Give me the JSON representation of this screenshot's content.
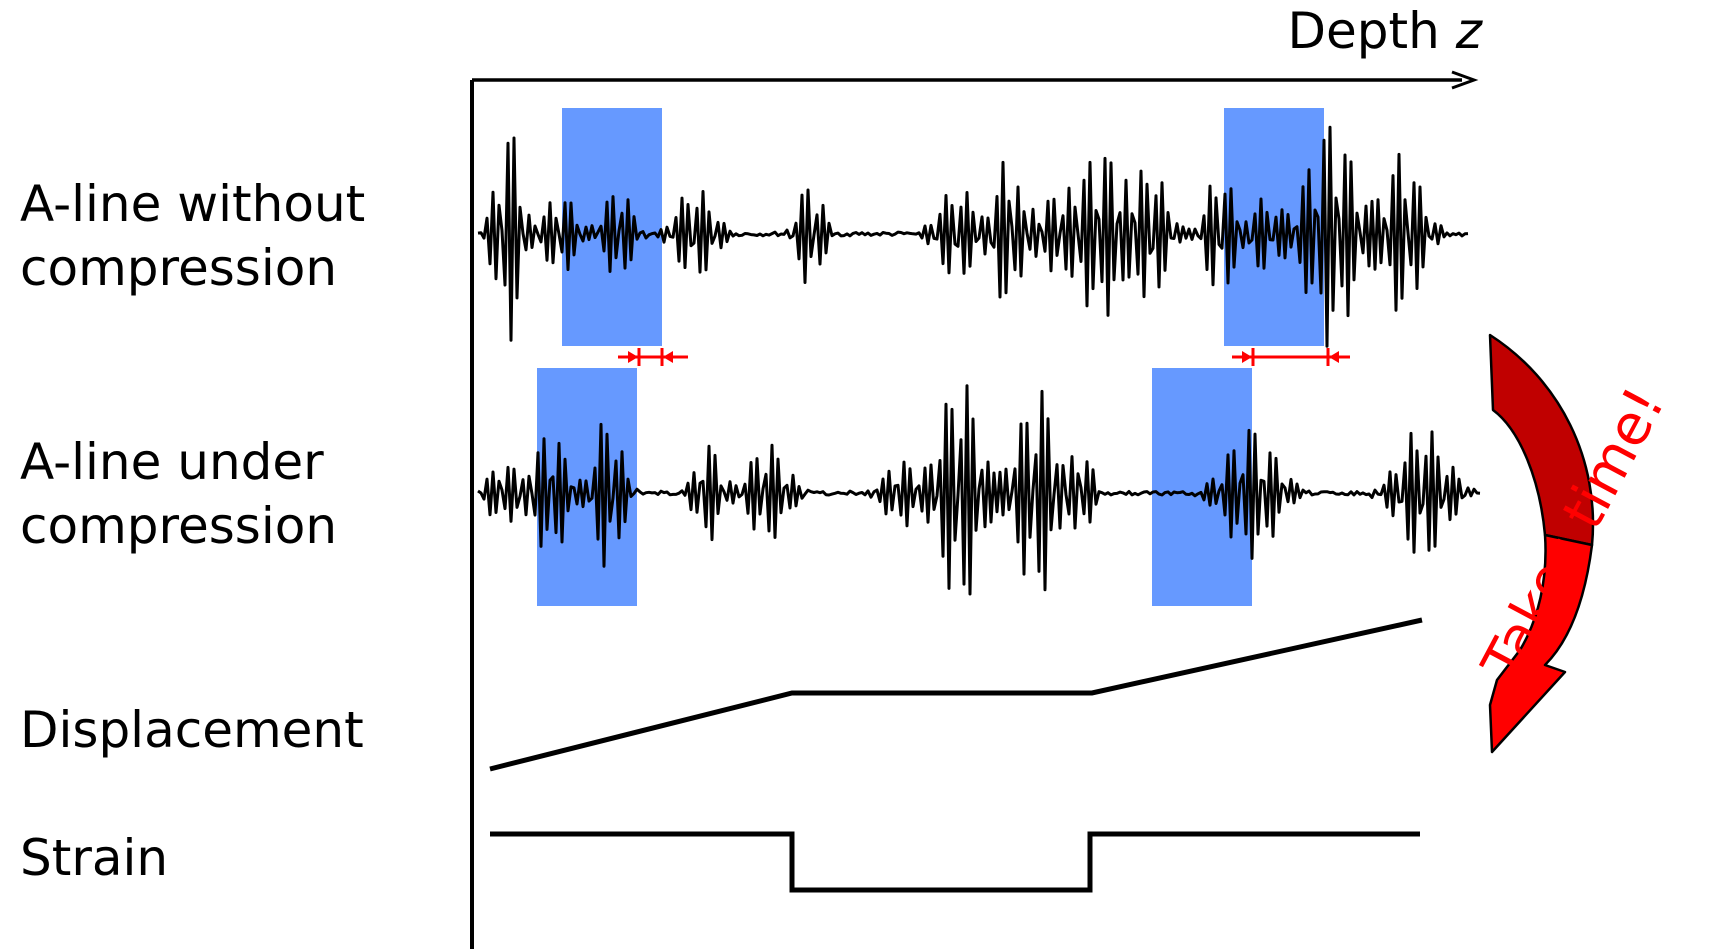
{
  "axis": {
    "label": "Depth",
    "variable": "z"
  },
  "rows": {
    "aline_uncompressed": "A-line without\ncompression",
    "aline_compressed": "A-line under\ncompression",
    "displacement": "Displacement",
    "strain": "Strain"
  },
  "annotation": "Takes time!",
  "colors": {
    "window": "#6699ff",
    "shift_marker": "#ff0000",
    "arrow_dark": "#c00000",
    "arrow_light": "#ff0000",
    "trace": "#000000"
  }
}
